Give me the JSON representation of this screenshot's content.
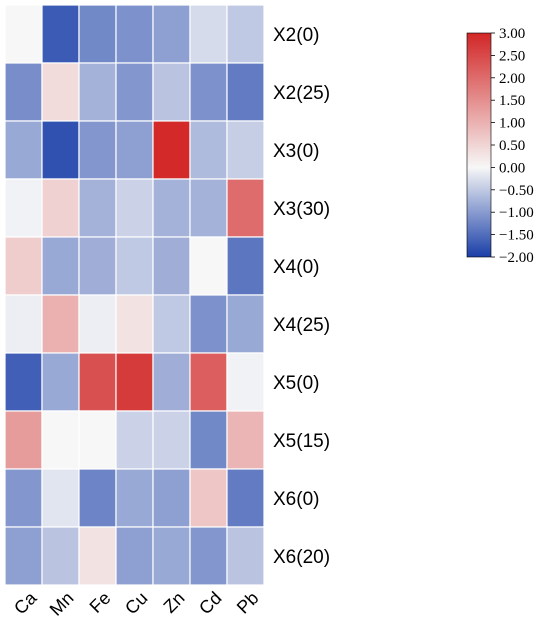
{
  "chart_data": {
    "type": "heatmap",
    "columns": [
      "Ca",
      "Mn",
      "Fe",
      "Cu",
      "Zn",
      "Cd",
      "Pb"
    ],
    "rows": [
      "X2(0)",
      "X2(25)",
      "X3(0)",
      "X3(30)",
      "X4(0)",
      "X4(25)",
      "X5(0)",
      "X5(15)",
      "X6(0)",
      "X6(20)"
    ],
    "values": [
      [
        0.0,
        -1.7,
        -1.2,
        -1.1,
        -0.95,
        -0.3,
        -0.5
      ],
      [
        -1.15,
        0.4,
        -0.75,
        -1.05,
        -0.55,
        -1.1,
        -1.35
      ],
      [
        -0.85,
        -1.8,
        -1.05,
        -0.95,
        2.95,
        -0.65,
        -0.45
      ],
      [
        -0.05,
        0.55,
        -0.75,
        -0.4,
        -0.75,
        -0.75,
        2.0
      ],
      [
        0.6,
        -0.85,
        -0.8,
        -0.5,
        -0.8,
        0.0,
        -1.4
      ],
      [
        -0.1,
        1.0,
        -0.1,
        0.3,
        -0.5,
        -1.1,
        -0.85
      ],
      [
        -1.65,
        -0.85,
        2.4,
        2.7,
        -0.8,
        2.2,
        -0.05
      ],
      [
        1.3,
        0.0,
        0.0,
        -0.4,
        -0.4,
        -1.2,
        0.95
      ],
      [
        -1.05,
        -0.2,
        -1.25,
        -0.85,
        -0.95,
        0.7,
        -1.35
      ],
      [
        -0.95,
        -0.55,
        0.3,
        -0.95,
        -0.85,
        -1.05,
        -0.55
      ]
    ],
    "colorbar": {
      "min": -2.0,
      "max": 3.0,
      "ticks": [
        "3.00",
        "2.50",
        "2.00",
        "1.50",
        "1.00",
        "0.50",
        "0.00",
        "−0.50",
        "−1.00",
        "−1.50",
        "−2.00"
      ],
      "tick_values": [
        3.0,
        2.5,
        2.0,
        1.5,
        1.0,
        0.5,
        0.0,
        -0.5,
        -1.0,
        -1.5,
        -2.0
      ]
    },
    "colormap": {
      "low": "#1a3fa8",
      "mid": "#f7f7f7",
      "high": "#d22626"
    }
  }
}
